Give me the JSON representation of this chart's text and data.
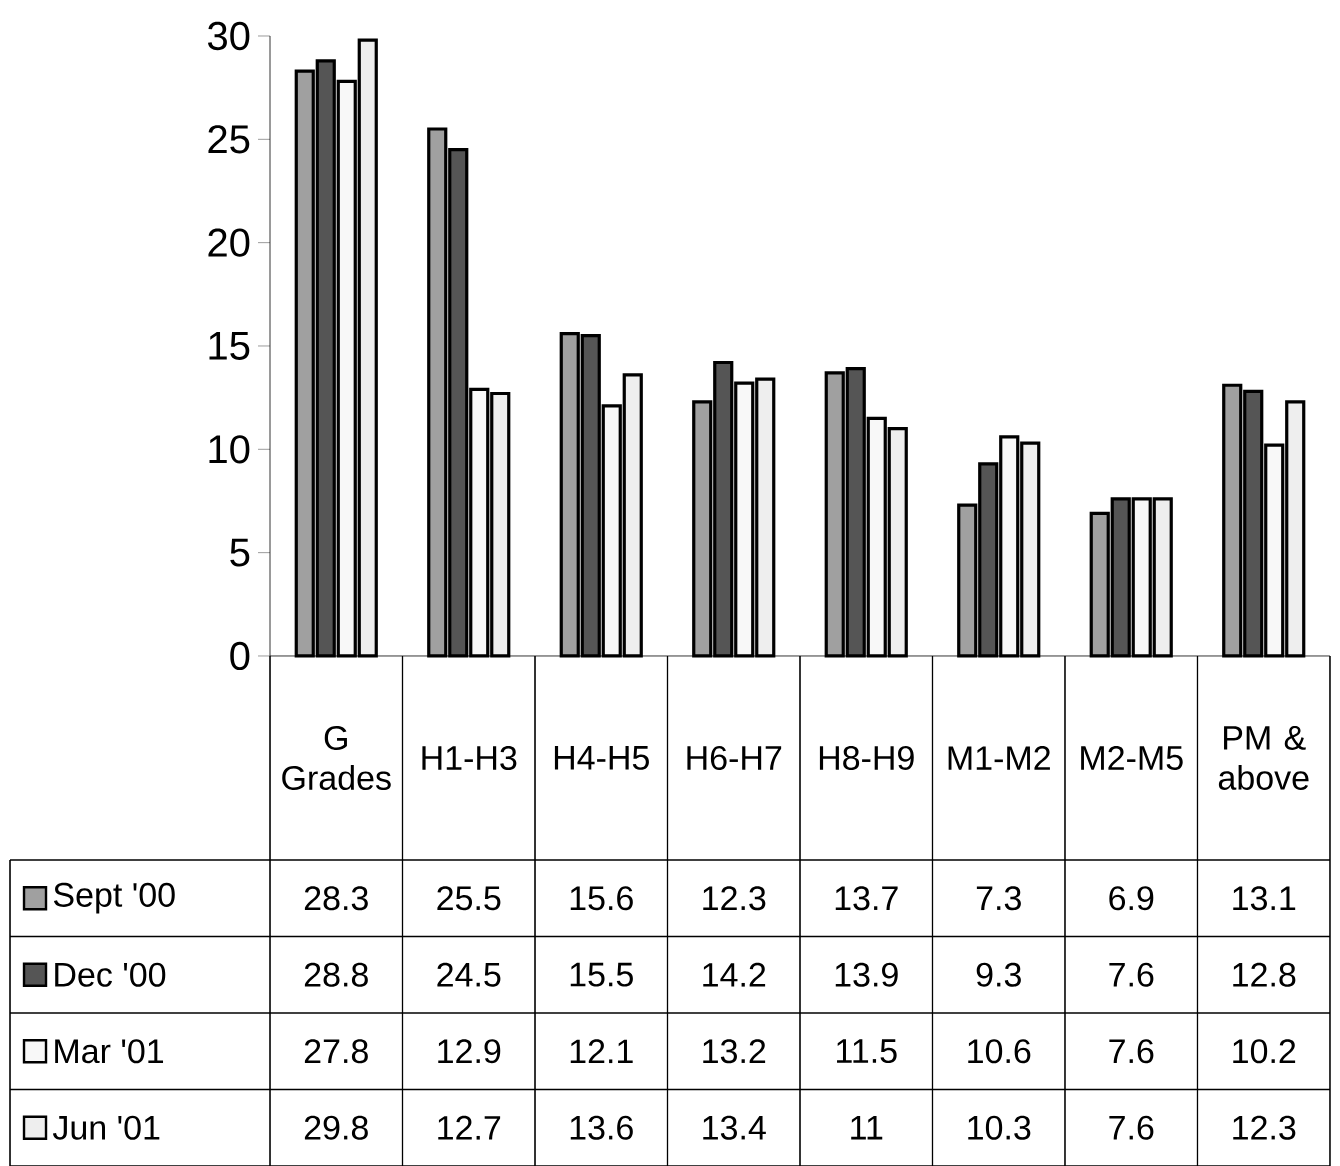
{
  "chart_data": {
    "type": "bar",
    "categories": [
      "G Grades",
      "H1-H3",
      "H4-H5",
      "H6-H7",
      "H8-H9",
      "M1-M2",
      "M2-M5",
      "PM & above"
    ],
    "series": [
      {
        "name": "Sept '00",
        "color": "#a0a0a0",
        "values": [
          28.3,
          25.5,
          15.6,
          12.3,
          13.7,
          7.3,
          6.9,
          13.1
        ]
      },
      {
        "name": "Dec '00",
        "color": "#555555",
        "values": [
          28.8,
          24.5,
          15.5,
          14.2,
          13.9,
          9.3,
          7.6,
          12.8
        ]
      },
      {
        "name": "Mar '01",
        "color": "#f8f8f8",
        "values": [
          27.8,
          12.9,
          12.1,
          13.2,
          11.5,
          10.6,
          7.6,
          10.2
        ]
      },
      {
        "name": "Jun '01",
        "color": "#eeeeee",
        "values": [
          29.8,
          12.7,
          13.6,
          13.4,
          11,
          10.3,
          7.6,
          12.3
        ]
      }
    ],
    "ylim": [
      0,
      30
    ],
    "yticks": [
      0,
      5,
      10,
      15,
      20,
      25,
      30
    ],
    "data_labels": true,
    "legend": "bottom"
  }
}
